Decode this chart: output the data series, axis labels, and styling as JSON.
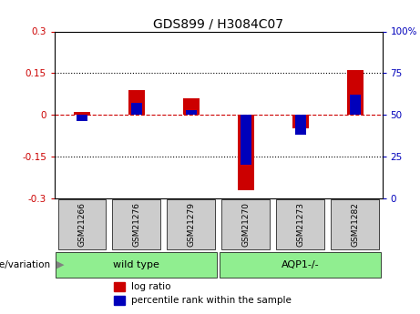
{
  "title": "GDS899 / H3084C07",
  "samples": [
    "GSM21266",
    "GSM21276",
    "GSM21279",
    "GSM21270",
    "GSM21273",
    "GSM21282"
  ],
  "log_ratios": [
    0.01,
    0.09,
    0.06,
    -0.27,
    -0.05,
    0.16
  ],
  "percentile_ranks": [
    46,
    57,
    53,
    20,
    38,
    62
  ],
  "ylim_left": [
    -0.3,
    0.3
  ],
  "ylim_right": [
    0,
    100
  ],
  "yticks_left": [
    -0.3,
    -0.15,
    0,
    0.15,
    0.3
  ],
  "yticks_right": [
    0,
    25,
    50,
    75,
    100
  ],
  "hlines_dotted": [
    0.15,
    -0.15
  ],
  "hline_zero": 0.0,
  "groups": [
    {
      "label": "wild type",
      "indices": [
        0,
        1,
        2
      ],
      "color": "#90EE90"
    },
    {
      "label": "AQP1-/-",
      "indices": [
        3,
        4,
        5
      ],
      "color": "#90EE90"
    }
  ],
  "bar_width": 0.3,
  "blue_bar_width": 0.2,
  "red_color": "#CC0000",
  "blue_color": "#0000BB",
  "zero_line_color": "#CC0000",
  "dotted_line_color": "#000000",
  "background_plot": "#FFFFFF",
  "sample_box_color": "#CCCCCC",
  "group_box_color": "#90EE90",
  "genotype_label": "genotype/variation",
  "legend_log_ratio": "log ratio",
  "legend_percentile": "percentile rank within the sample",
  "title_fontsize": 10,
  "tick_fontsize": 7.5,
  "sample_fontsize": 6.5,
  "group_fontsize": 8,
  "legend_fontsize": 7.5,
  "genotype_fontsize": 7.5
}
